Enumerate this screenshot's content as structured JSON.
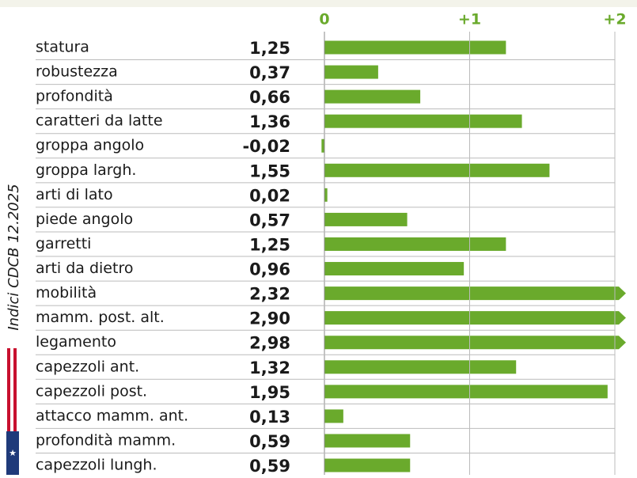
{
  "chart_data": {
    "type": "barh",
    "annotation": "Indici CDCB 12.2025",
    "categories": [
      "statura",
      "robustezza",
      "profondità",
      "caratteri da latte",
      "groppa angolo",
      "groppa largh.",
      "arti di lato",
      "piede angolo",
      "garretti",
      "arti da dietro",
      "mobilità",
      "mamm. post. alt.",
      "legamento",
      "capezzoli ant.",
      "capezzoli post.",
      "attacco mamm. ant.",
      "profondità mamm.",
      "capezzoli lungh."
    ],
    "values": [
      1.25,
      0.37,
      0.66,
      1.36,
      -0.02,
      1.55,
      0.02,
      0.57,
      1.25,
      0.96,
      2.32,
      2.9,
      2.98,
      1.32,
      1.95,
      0.13,
      0.59,
      0.59
    ],
    "value_labels": [
      "1,25",
      "0,37",
      "0,66",
      "1,36",
      "-0,02",
      "1,55",
      "0,02",
      "0,57",
      "1,25",
      "0,96",
      "2,32",
      "2,90",
      "2,98",
      "1,32",
      "1,95",
      "0,13",
      "0,59",
      "0,59"
    ],
    "color": "#6aaa2c",
    "xlim": [
      0,
      2
    ],
    "xticks": [
      0,
      {
        "value": 1,
        "label": "+1"
      },
      {
        "value": 2,
        "label": "+2"
      }
    ],
    "grid": true
  }
}
